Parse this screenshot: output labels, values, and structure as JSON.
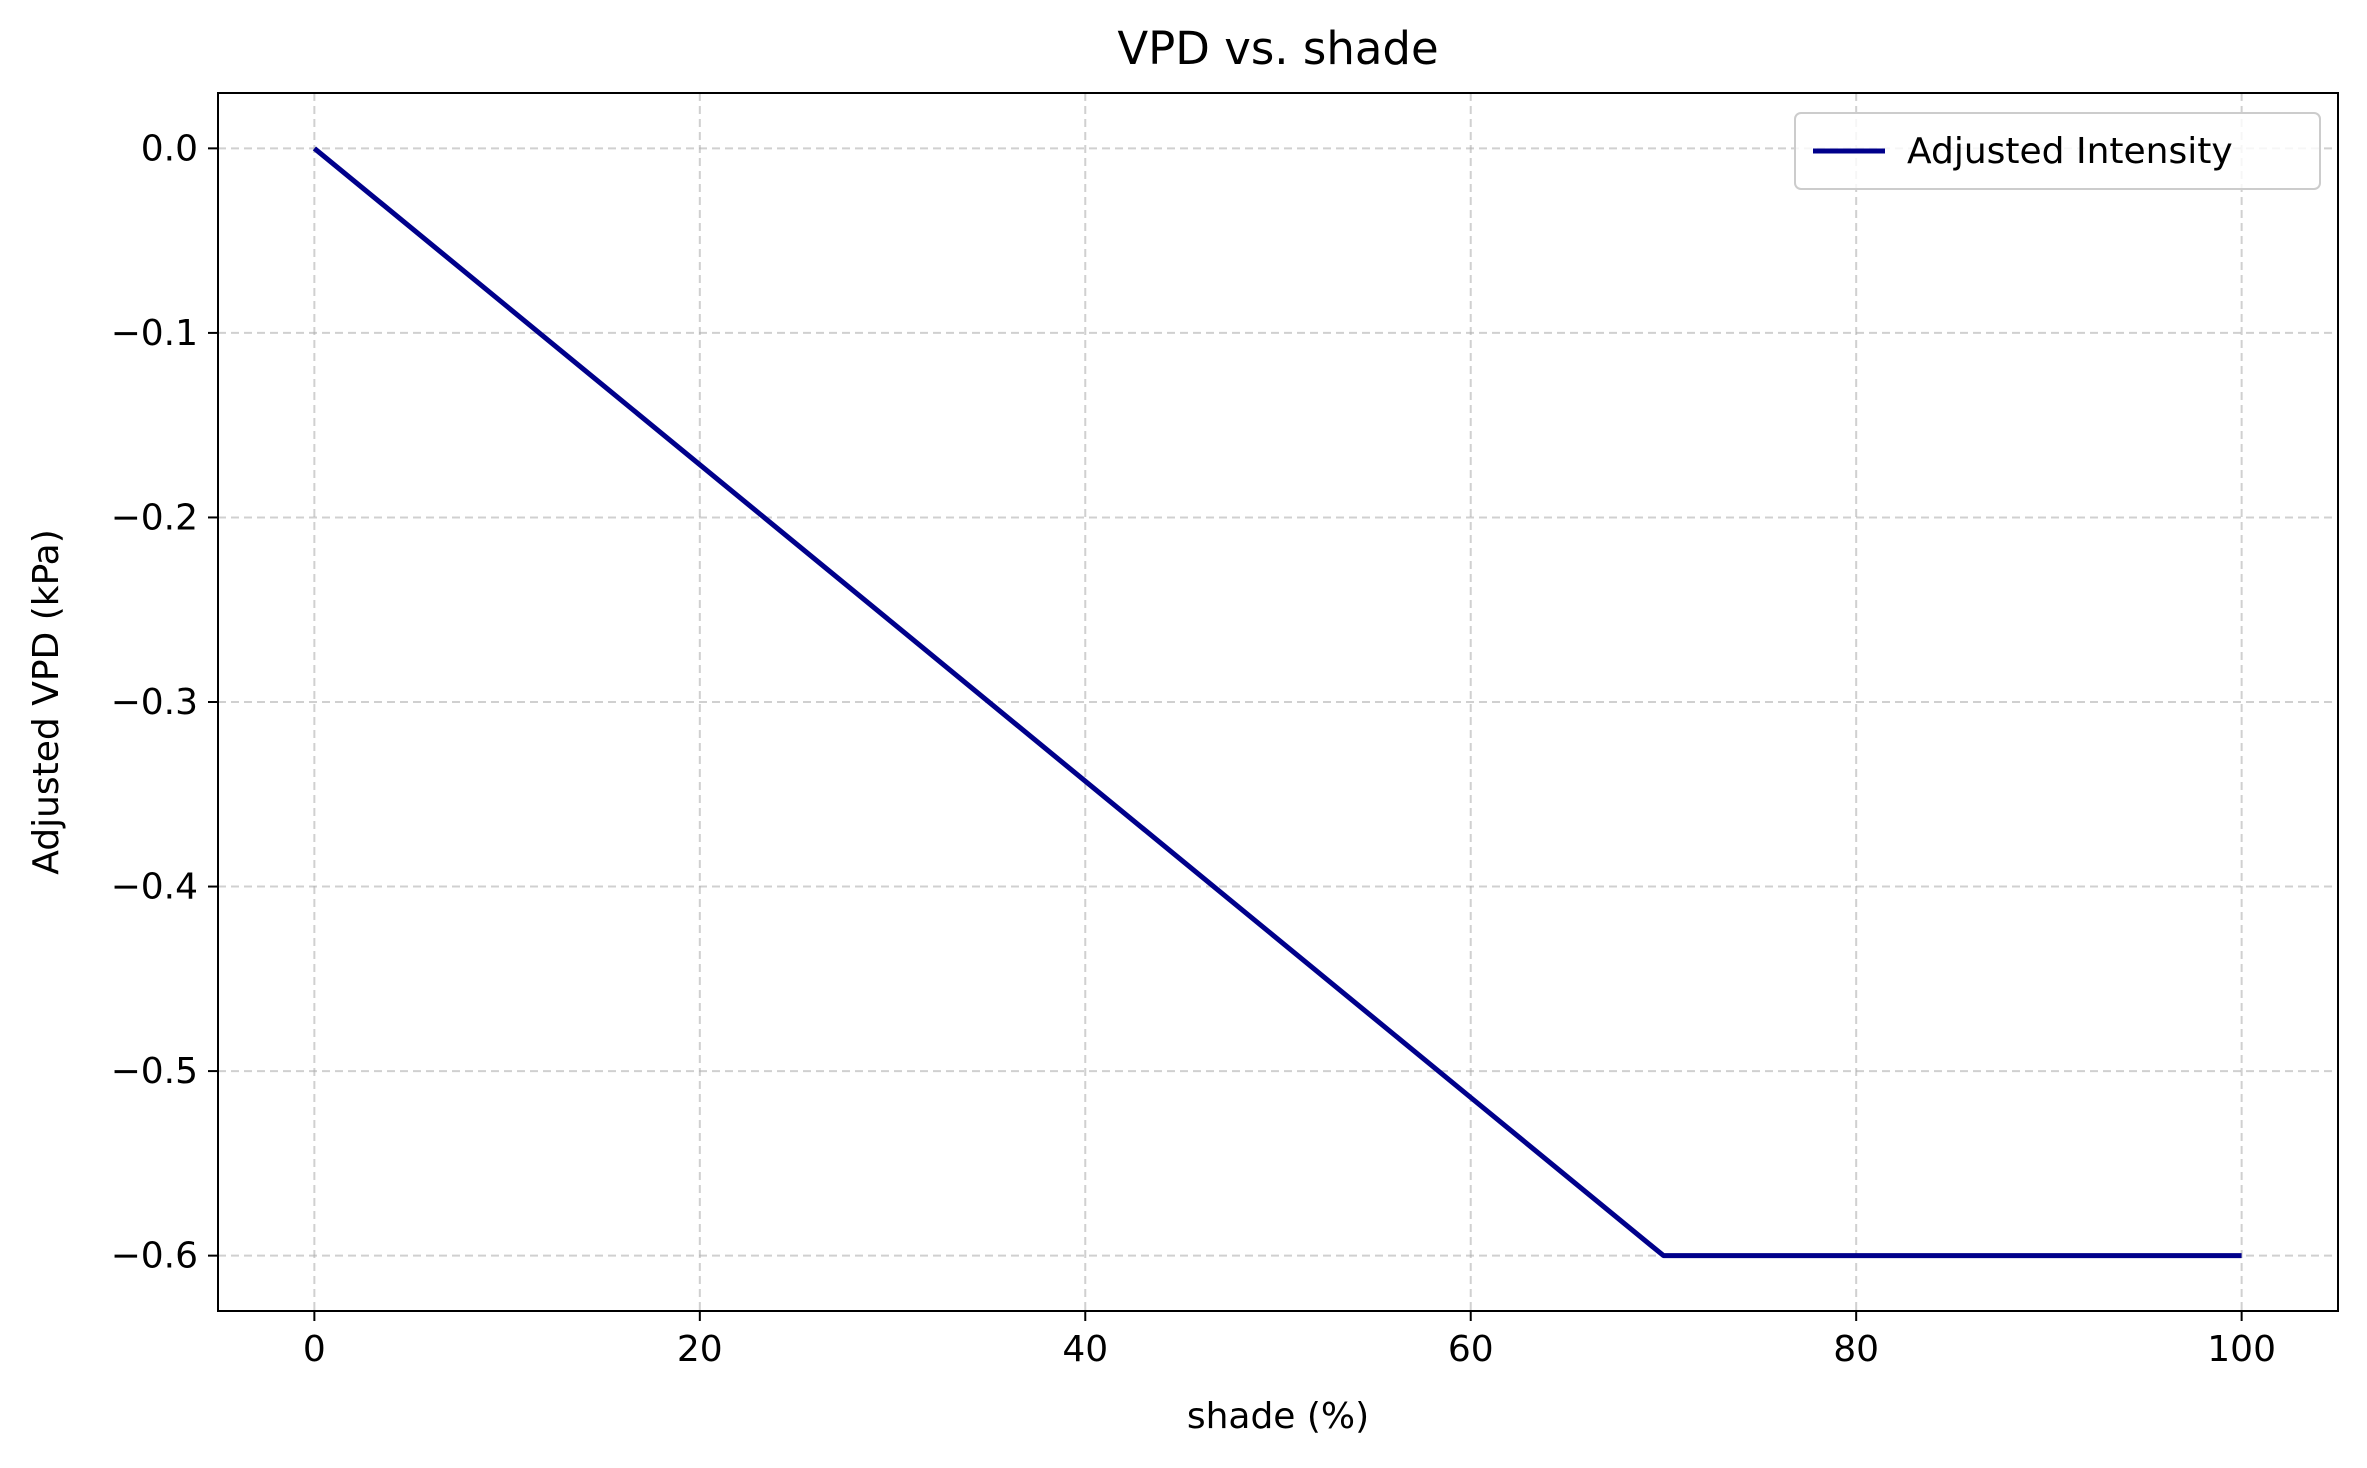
{
  "chart_data": {
    "type": "line",
    "title": "VPD vs. shade",
    "xlabel": "shade (%)",
    "ylabel": "Adjusted VPD (kPa)",
    "xlim": [
      -5,
      105
    ],
    "ylim": [
      -0.63,
      0.03
    ],
    "xticks": [
      0,
      20,
      40,
      60,
      80,
      100
    ],
    "xtick_labels": [
      "0",
      "20",
      "40",
      "60",
      "80",
      "100"
    ],
    "yticks": [
      0.0,
      -0.1,
      -0.2,
      -0.3,
      -0.4,
      -0.5,
      -0.6
    ],
    "ytick_labels": [
      "0.0",
      "−0.1",
      "−0.2",
      "−0.3",
      "−0.4",
      "−0.5",
      "−0.6"
    ],
    "grid": true,
    "legend_position": "top-right",
    "series": [
      {
        "name": "Adjusted Intensity",
        "color": "#00008b",
        "x": [
          0,
          10,
          20,
          30,
          40,
          50,
          60,
          69.5,
          70,
          80,
          90,
          100
        ],
        "y": [
          0.0,
          -0.0857,
          -0.1714,
          -0.2571,
          -0.3429,
          -0.4286,
          -0.5143,
          -0.5957,
          -0.6,
          -0.6,
          -0.6,
          -0.6
        ]
      }
    ]
  }
}
